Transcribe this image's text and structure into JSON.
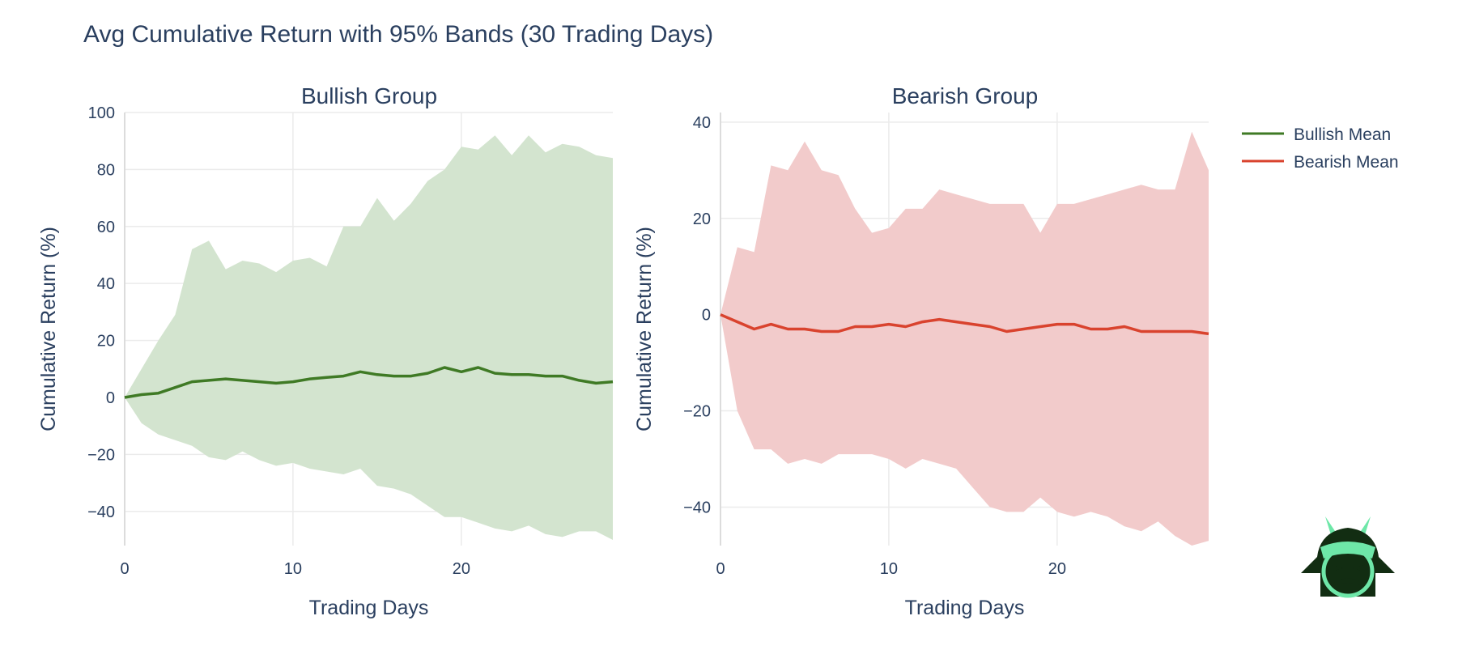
{
  "title": "Avg Cumulative Return with 95% Bands (30 Trading Days)",
  "colors": {
    "bullish_line": "#3f7a25",
    "bullish_band": "#d3e4cf",
    "bearish_line": "#d9432e",
    "bearish_band": "#f2cbcb",
    "text": "#2a3f5f",
    "logo_dark": "#122d12",
    "logo_accent": "#6ee7a8"
  },
  "legend": [
    {
      "label": "Bullish Mean",
      "color": "#3f7a25"
    },
    {
      "label": "Bearish Mean",
      "color": "#d9432e"
    }
  ],
  "logo": {
    "icon": "samurai-helmet-icon"
  },
  "chart_data": [
    {
      "type": "line",
      "title": "Bullish Group",
      "xlabel": "Trading Days",
      "ylabel": "Cumulative Return (%)",
      "xlim": [
        0,
        29
      ],
      "ylim": [
        -52,
        100
      ],
      "xticks": [
        0,
        10,
        20
      ],
      "yticks": [
        -40,
        -20,
        0,
        20,
        40,
        60,
        80,
        100
      ],
      "grid": true,
      "series": [
        {
          "name": "Bullish Mean",
          "kind": "line",
          "x": [
            0,
            1,
            2,
            3,
            4,
            5,
            6,
            7,
            8,
            9,
            10,
            11,
            12,
            13,
            14,
            15,
            16,
            17,
            18,
            19,
            20,
            21,
            22,
            23,
            24,
            25,
            26,
            27,
            28,
            29
          ],
          "y": [
            0,
            1,
            1.5,
            3.5,
            5.5,
            6,
            6.5,
            6,
            5.5,
            5,
            5.5,
            6.5,
            7,
            7.5,
            9,
            8,
            7.5,
            7.5,
            8.5,
            10.5,
            9,
            10.5,
            8.5,
            8,
            8,
            7.5,
            7.5,
            6,
            5,
            5.5
          ]
        },
        {
          "name": "Upper 95%",
          "kind": "band-upper",
          "x": [
            0,
            1,
            2,
            3,
            4,
            5,
            6,
            7,
            8,
            9,
            10,
            11,
            12,
            13,
            14,
            15,
            16,
            17,
            18,
            19,
            20,
            21,
            22,
            23,
            24,
            25,
            26,
            27,
            28,
            29
          ],
          "y": [
            0,
            10,
            20,
            29,
            52,
            55,
            45,
            48,
            47,
            44,
            48,
            49,
            46,
            60,
            60,
            70,
            62,
            68,
            76,
            80,
            88,
            87,
            92,
            85,
            92,
            86,
            89,
            88,
            85,
            84
          ]
        },
        {
          "name": "Lower 95%",
          "kind": "band-lower",
          "x": [
            0,
            1,
            2,
            3,
            4,
            5,
            6,
            7,
            8,
            9,
            10,
            11,
            12,
            13,
            14,
            15,
            16,
            17,
            18,
            19,
            20,
            21,
            22,
            23,
            24,
            25,
            26,
            27,
            28,
            29
          ],
          "y": [
            0,
            -9,
            -13,
            -15,
            -17,
            -21,
            -22,
            -19,
            -22,
            -24,
            -23,
            -25,
            -26,
            -27,
            -25,
            -31,
            -32,
            -34,
            -38,
            -42,
            -42,
            -44,
            -46,
            -47,
            -45,
            -48,
            -49,
            -47,
            -47,
            -50
          ]
        }
      ]
    },
    {
      "type": "line",
      "title": "Bearish Group",
      "xlabel": "Trading Days",
      "ylabel": "Cumulative Return (%)",
      "xlim": [
        0,
        29
      ],
      "ylim": [
        -48,
        42
      ],
      "xticks": [
        0,
        10,
        20
      ],
      "yticks": [
        -40,
        -20,
        0,
        20,
        40
      ],
      "grid": true,
      "series": [
        {
          "name": "Bearish Mean",
          "kind": "line",
          "x": [
            0,
            1,
            2,
            3,
            4,
            5,
            6,
            7,
            8,
            9,
            10,
            11,
            12,
            13,
            14,
            15,
            16,
            17,
            18,
            19,
            20,
            21,
            22,
            23,
            24,
            25,
            26,
            27,
            28,
            29
          ],
          "y": [
            0,
            -1.5,
            -3,
            -2,
            -3,
            -3,
            -3.5,
            -3.5,
            -2.5,
            -2.5,
            -2,
            -2.5,
            -1.5,
            -1,
            -1.5,
            -2,
            -2.5,
            -3.5,
            -3,
            -2.5,
            -2,
            -2,
            -3,
            -3,
            -2.5,
            -3.5,
            -3.5,
            -3.5,
            -3.5,
            -4
          ]
        },
        {
          "name": "Upper 95%",
          "kind": "band-upper",
          "x": [
            0,
            1,
            2,
            3,
            4,
            5,
            6,
            7,
            8,
            9,
            10,
            11,
            12,
            13,
            14,
            15,
            16,
            17,
            18,
            19,
            20,
            21,
            22,
            23,
            24,
            25,
            26,
            27,
            28,
            29
          ],
          "y": [
            0,
            14,
            13,
            31,
            30,
            36,
            30,
            29,
            22,
            17,
            18,
            22,
            22,
            26,
            25,
            24,
            23,
            23,
            23,
            17,
            23,
            23,
            24,
            25,
            26,
            27,
            26,
            26,
            38,
            30
          ]
        },
        {
          "name": "Lower 95%",
          "kind": "band-lower",
          "x": [
            0,
            1,
            2,
            3,
            4,
            5,
            6,
            7,
            8,
            9,
            10,
            11,
            12,
            13,
            14,
            15,
            16,
            17,
            18,
            19,
            20,
            21,
            22,
            23,
            24,
            25,
            26,
            27,
            28,
            29
          ],
          "y": [
            0,
            -20,
            -28,
            -28,
            -31,
            -30,
            -31,
            -29,
            -29,
            -29,
            -30,
            -32,
            -30,
            -31,
            -32,
            -36,
            -40,
            -41,
            -41,
            -38,
            -41,
            -42,
            -41,
            -42,
            -44,
            -45,
            -43,
            -46,
            -48,
            -47
          ]
        }
      ]
    }
  ]
}
